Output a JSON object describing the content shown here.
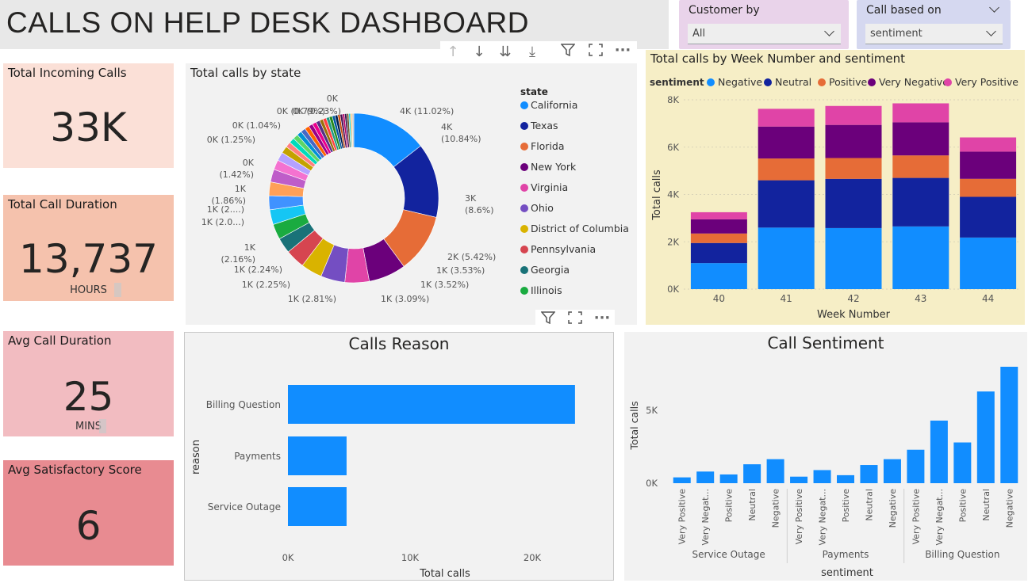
{
  "header": {
    "title": "CALLS ON HELP DESK DASHBOARD"
  },
  "slicers": [
    {
      "label": "Customer by",
      "value": "All"
    },
    {
      "label": "Call based on",
      "value": "sentiment"
    }
  ],
  "cards": [
    {
      "label": "Total Incoming Calls",
      "value": "33K",
      "unit": ""
    },
    {
      "label": "Total Call Duration",
      "value": "13,737",
      "unit": "HOURS"
    },
    {
      "label": "Avg Call Duration",
      "value": "25",
      "unit": "MINS"
    },
    {
      "label": "Avg Satisfactory Score",
      "value": "6",
      "unit": ""
    }
  ],
  "colors": {
    "card1": "#fbe0d7",
    "card2": "#f5c2ad",
    "card3": "#f2bcc1",
    "card4": "#e88b91",
    "slicer_bg": "#e9d3ea",
    "slicer2_bg": "#d5d8f0",
    "week_panel_bg": "#f6eec6",
    "bar_blue": "#118dff"
  },
  "chart_data": [
    {
      "type": "pie",
      "title": "Total calls by state",
      "legend_title": "state",
      "legend": [
        "California",
        "Texas",
        "Florida",
        "New York",
        "Virginia",
        "Ohio",
        "District of Columbia",
        "Pennsylvania",
        "Georgia",
        "Illinois"
      ],
      "legend_colors": [
        "#118dff",
        "#12239e",
        "#e66c37",
        "#6b007b",
        "#e044a7",
        "#744ec2",
        "#d9b300",
        "#d64550",
        "#197278",
        "#1aab40"
      ],
      "slice_labels": [
        "4K (11.02%)",
        "4K (10.84%)",
        "3K (8.6%)",
        "2K (5.42%)",
        "1K (3.53%)",
        "1K (3.52%)",
        "1K (3.09%)",
        "1K (2.81%)",
        "1K (2.25%)",
        "1K (2.24%)",
        "1K (2.16%)",
        "1K (2.0...)",
        "1K (2....)",
        "1K (1.86%)",
        "0K (1.42%)",
        "0K (1.25%)",
        "0K (1.04%)",
        "0K (0.79%)",
        "0K (0.23%)",
        "0K"
      ],
      "slices": [
        11.02,
        10.84,
        8.6,
        5.42,
        3.53,
        3.52,
        3.09,
        2.81,
        2.25,
        2.24,
        2.16,
        2.03,
        2.0,
        1.86,
        1.42,
        1.25,
        1.04,
        0.79,
        0.79,
        0.75,
        0.7,
        0.7,
        0.65,
        0.6,
        0.6,
        0.55,
        0.5,
        0.5,
        0.45,
        0.45,
        0.4,
        0.4,
        0.35,
        0.35,
        0.3,
        0.3,
        0.3,
        0.25,
        0.25,
        0.23
      ],
      "slice_colors": [
        "#118dff",
        "#12239e",
        "#e66c37",
        "#6b007b",
        "#e044a7",
        "#744ec2",
        "#d9b300",
        "#d64550",
        "#197278",
        "#1aab40",
        "#15c6f4",
        "#4092ff",
        "#ffa058",
        "#be5dc9",
        "#f472d0",
        "#b5a1ff",
        "#c4a200",
        "#ff8080",
        "#00dbbc",
        "#5bd667",
        "#0091d5",
        "#4668c5",
        "#ff6300",
        "#99008a",
        "#ec008c",
        "#533285",
        "#99700a",
        "#ff4141",
        "#1f9a85",
        "#25891c",
        "#0057a2",
        "#002050",
        "#c94f0f",
        "#450f54",
        "#b60064",
        "#34124f",
        "#6a5a29",
        "#1bd4d4",
        "#fec37d",
        "#c2c2c2"
      ]
    },
    {
      "type": "bar",
      "stacked": true,
      "title": "Total calls by Week Number and sentiment",
      "legend_title": "sentiment",
      "xlabel": "Week Number",
      "ylabel": "Total calls",
      "categories": [
        "40",
        "41",
        "42",
        "43",
        "44"
      ],
      "ylim": [
        0,
        8000
      ],
      "yticks": [
        "0K",
        "2K",
        "4K",
        "6K",
        "8K"
      ],
      "series": [
        {
          "name": "Negative",
          "color": "#118dff",
          "values": [
            1100,
            2600,
            2580,
            2650,
            2180
          ]
        },
        {
          "name": "Neutral",
          "color": "#12239e",
          "values": [
            850,
            2000,
            2080,
            2050,
            1720
          ]
        },
        {
          "name": "Positive",
          "color": "#e66c37",
          "values": [
            400,
            920,
            880,
            950,
            760
          ]
        },
        {
          "name": "Very Negative",
          "color": "#6b007b",
          "values": [
            600,
            1350,
            1400,
            1400,
            1150
          ]
        },
        {
          "name": "Very Positive",
          "color": "#e044a7",
          "values": [
            300,
            750,
            800,
            800,
            600
          ]
        }
      ]
    },
    {
      "type": "bar",
      "orientation": "horizontal",
      "title": "Calls Reason",
      "xlabel": "Total calls",
      "ylabel": "reason",
      "categories": [
        "Billing Question",
        "Payments",
        "Service Outage"
      ],
      "values": [
        23500,
        4800,
        4800
      ],
      "xlim": [
        0,
        25000
      ],
      "xticks": [
        "0K",
        "10K",
        "20K"
      ]
    },
    {
      "type": "bar",
      "title": "Call Sentiment",
      "xlabel": "sentiment",
      "ylabel": "Total calls",
      "groups": [
        "Service Outage",
        "Payments",
        "Billing Question"
      ],
      "categories": [
        "Very Positive",
        "Very Negat...",
        "Positive",
        "Neutral",
        "Negative"
      ],
      "series": [
        {
          "name": "Service Outage",
          "values": [
            400,
            800,
            600,
            1300,
            1650
          ]
        },
        {
          "name": "Payments",
          "values": [
            450,
            900,
            550,
            1250,
            1650
          ]
        },
        {
          "name": "Billing Question",
          "values": [
            2300,
            4300,
            2800,
            6300,
            8000
          ]
        }
      ],
      "ylim": [
        0,
        8000
      ],
      "yticks": [
        "0K",
        "5K"
      ]
    }
  ]
}
